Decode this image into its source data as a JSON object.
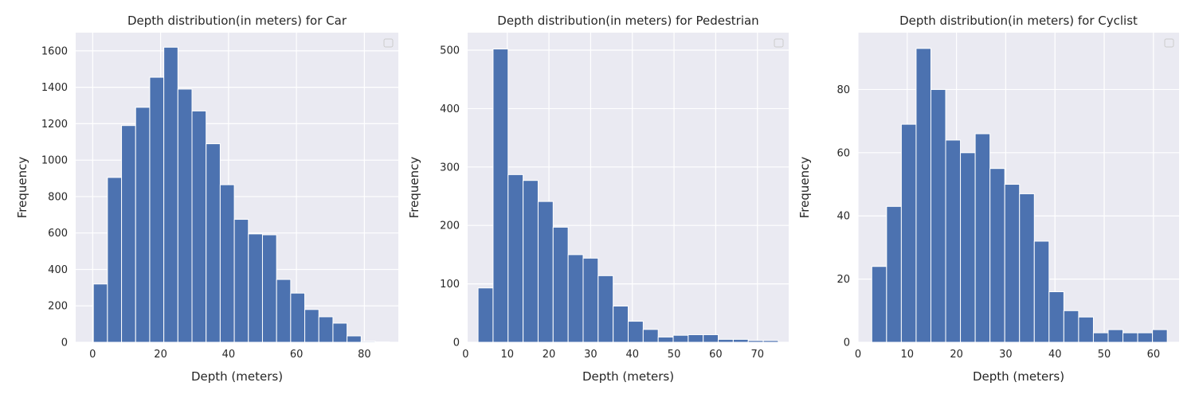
{
  "chart_data": [
    {
      "type": "bar",
      "title": "Depth distribution(in meters) for Car",
      "xlabel": "Depth (meters)",
      "ylabel": "Frequency",
      "xlim": [
        -5,
        90
      ],
      "ylim": [
        0,
        1700
      ],
      "xticks": [
        "0",
        "20",
        "40",
        "60",
        "80"
      ],
      "yticks": [
        "0",
        "200",
        "400",
        "600",
        "800",
        "1000",
        "1200",
        "1400",
        "1600"
      ],
      "bin_edges": [
        0.2,
        4.35,
        8.5,
        12.65,
        16.8,
        20.95,
        25.1,
        29.25,
        33.4,
        37.55,
        41.7,
        45.85,
        50.0,
        54.15,
        58.3,
        62.45,
        66.6,
        70.75,
        74.9,
        79.05,
        83.2,
        87.35
      ],
      "values": [
        320,
        905,
        1190,
        1290,
        1455,
        1620,
        1390,
        1270,
        1090,
        865,
        675,
        595,
        590,
        345,
        270,
        180,
        140,
        105,
        35,
        5,
        2
      ],
      "grid": true,
      "legend": "top-right"
    },
    {
      "type": "bar",
      "title": "Depth distribution(in meters) for Pedestrian",
      "xlabel": "Depth (meters)",
      "ylabel": "Frequency",
      "xlim": [
        0.5,
        77.5
      ],
      "ylim": [
        0,
        530
      ],
      "xticks": [
        "0",
        "10",
        "20",
        "30",
        "40",
        "50",
        "60",
        "70"
      ],
      "yticks": [
        "0",
        "100",
        "200",
        "300",
        "400",
        "500"
      ],
      "bin_edges": [
        3.0,
        6.6,
        10.2,
        13.8,
        17.4,
        21.0,
        24.6,
        28.2,
        31.8,
        35.4,
        39.0,
        42.6,
        46.2,
        49.8,
        53.4,
        57.0,
        60.6,
        64.2,
        67.8,
        71.4,
        75.0
      ],
      "values": [
        93,
        502,
        287,
        277,
        241,
        197,
        150,
        144,
        114,
        62,
        36,
        22,
        9,
        12,
        13,
        13,
        5,
        5,
        3,
        3
      ],
      "grid": true,
      "legend": "top-right"
    },
    {
      "type": "bar",
      "title": "Depth distribution(in meters) for Cyclist",
      "xlabel": "Depth (meters)",
      "ylabel": "Frequency",
      "xlim": [
        0,
        65.2
      ],
      "ylim": [
        0,
        98
      ],
      "xticks": [
        "0",
        "10",
        "20",
        "30",
        "40",
        "50",
        "60"
      ],
      "yticks": [
        "0",
        "20",
        "40",
        "60",
        "80"
      ],
      "bin_edges": [
        2.8,
        5.8,
        8.8,
        11.8,
        14.8,
        17.8,
        20.8,
        23.8,
        26.8,
        29.8,
        32.8,
        35.8,
        38.8,
        41.8,
        44.8,
        47.8,
        50.8,
        53.8,
        56.8,
        59.8,
        62.8
      ],
      "values": [
        24,
        43,
        69,
        93,
        80,
        64,
        60,
        66,
        55,
        50,
        47,
        32,
        16,
        10,
        8,
        3,
        4,
        3,
        3,
        4
      ],
      "grid": true,
      "legend": "top-right"
    }
  ],
  "colors": {
    "bar": "#4c72b0",
    "plot_background": "#eaeaf2",
    "grid": "#ffffff",
    "text": "#262626"
  }
}
